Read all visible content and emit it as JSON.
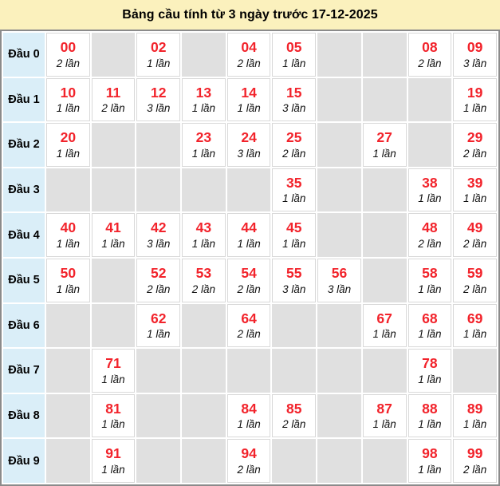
{
  "title": "Bảng cầu tính từ 3 ngày trước 17-12-2025",
  "colors": {
    "title_bg": "#fbf1bd",
    "row_label_bg": "#daeef8",
    "empty_cell_bg": "#e0e0e0",
    "number_red": "#f2232b",
    "count_text": "#111111",
    "outer_border": "#8b8b8b"
  },
  "table": {
    "columns": 10,
    "unit_word": "lần",
    "rows": [
      {
        "label": "Đầu 0",
        "cells": [
          {
            "num": "00",
            "count": "2 lần"
          },
          null,
          {
            "num": "02",
            "count": "1 lần"
          },
          null,
          {
            "num": "04",
            "count": "2 lần"
          },
          {
            "num": "05",
            "count": "1 lần"
          },
          null,
          null,
          {
            "num": "08",
            "count": "2 lần"
          },
          {
            "num": "09",
            "count": "3 lần"
          }
        ]
      },
      {
        "label": "Đầu 1",
        "cells": [
          {
            "num": "10",
            "count": "1 lần"
          },
          {
            "num": "11",
            "count": "2 lần"
          },
          {
            "num": "12",
            "count": "3 lần"
          },
          {
            "num": "13",
            "count": "1 lần"
          },
          {
            "num": "14",
            "count": "1 lần"
          },
          {
            "num": "15",
            "count": "3 lần"
          },
          null,
          null,
          null,
          {
            "num": "19",
            "count": "1 lần"
          }
        ]
      },
      {
        "label": "Đầu 2",
        "cells": [
          {
            "num": "20",
            "count": "1 lần"
          },
          null,
          null,
          {
            "num": "23",
            "count": "1 lần"
          },
          {
            "num": "24",
            "count": "3 lần"
          },
          {
            "num": "25",
            "count": "2 lần"
          },
          null,
          {
            "num": "27",
            "count": "1 lần"
          },
          null,
          {
            "num": "29",
            "count": "2 lần"
          }
        ]
      },
      {
        "label": "Đầu 3",
        "cells": [
          null,
          null,
          null,
          null,
          null,
          {
            "num": "35",
            "count": "1 lần"
          },
          null,
          null,
          {
            "num": "38",
            "count": "1 lần"
          },
          {
            "num": "39",
            "count": "1 lần"
          }
        ]
      },
      {
        "label": "Đầu 4",
        "cells": [
          {
            "num": "40",
            "count": "1 lần"
          },
          {
            "num": "41",
            "count": "1 lần"
          },
          {
            "num": "42",
            "count": "3 lần"
          },
          {
            "num": "43",
            "count": "1 lần"
          },
          {
            "num": "44",
            "count": "1 lần"
          },
          {
            "num": "45",
            "count": "1 lần"
          },
          null,
          null,
          {
            "num": "48",
            "count": "2 lần"
          },
          {
            "num": "49",
            "count": "2 lần"
          }
        ]
      },
      {
        "label": "Đầu 5",
        "cells": [
          {
            "num": "50",
            "count": "1 lần"
          },
          null,
          {
            "num": "52",
            "count": "2 lần"
          },
          {
            "num": "53",
            "count": "2 lần"
          },
          {
            "num": "54",
            "count": "2 lần"
          },
          {
            "num": "55",
            "count": "3 lần"
          },
          {
            "num": "56",
            "count": "3 lần"
          },
          null,
          {
            "num": "58",
            "count": "1 lần"
          },
          {
            "num": "59",
            "count": "2 lần"
          }
        ]
      },
      {
        "label": "Đầu 6",
        "cells": [
          null,
          null,
          {
            "num": "62",
            "count": "1 lần"
          },
          null,
          {
            "num": "64",
            "count": "2 lần"
          },
          null,
          null,
          {
            "num": "67",
            "count": "1 lần"
          },
          {
            "num": "68",
            "count": "1 lần"
          },
          {
            "num": "69",
            "count": "1 lần"
          }
        ]
      },
      {
        "label": "Đầu 7",
        "cells": [
          null,
          {
            "num": "71",
            "count": "1 lần"
          },
          null,
          null,
          null,
          null,
          null,
          null,
          {
            "num": "78",
            "count": "1 lần"
          },
          null
        ]
      },
      {
        "label": "Đầu 8",
        "cells": [
          null,
          {
            "num": "81",
            "count": "1 lần"
          },
          null,
          null,
          {
            "num": "84",
            "count": "1 lần"
          },
          {
            "num": "85",
            "count": "2 lần"
          },
          null,
          {
            "num": "87",
            "count": "1 lần"
          },
          {
            "num": "88",
            "count": "1 lần"
          },
          {
            "num": "89",
            "count": "1 lần"
          }
        ]
      },
      {
        "label": "Đầu 9",
        "cells": [
          null,
          {
            "num": "91",
            "count": "1 lần"
          },
          null,
          null,
          {
            "num": "94",
            "count": "2 lần"
          },
          null,
          null,
          null,
          {
            "num": "98",
            "count": "1 lần"
          },
          {
            "num": "99",
            "count": "2 lần"
          }
        ]
      }
    ]
  }
}
